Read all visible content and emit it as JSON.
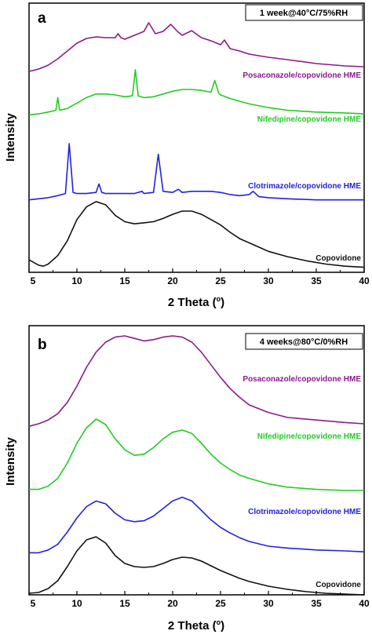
{
  "chart_data": [
    {
      "type": "line",
      "panel_label": "a",
      "condition": "1 week@40°C/75%RH",
      "xlabel": "2 Theta (°)",
      "ylabel": "Intensity",
      "xlim": [
        5,
        40
      ],
      "xticks": [
        "5",
        "10",
        "15",
        "20",
        "25",
        "30",
        "35",
        "40"
      ],
      "series": [
        {
          "name": "Posaconazole/copovidone HME",
          "color": "#8B1A8B",
          "x": [
            5,
            6,
            7,
            8,
            9,
            10,
            11,
            12,
            13,
            14,
            14.3,
            14.6,
            15,
            16,
            17,
            17.5,
            17.8,
            18.2,
            19,
            19.8,
            20.5,
            21,
            22,
            22.3,
            23,
            24,
            25,
            25.4,
            26,
            27,
            28,
            30,
            32,
            35,
            38,
            40
          ],
          "y": [
            0.04,
            0.07,
            0.12,
            0.2,
            0.3,
            0.4,
            0.46,
            0.48,
            0.47,
            0.47,
            0.52,
            0.47,
            0.45,
            0.5,
            0.55,
            0.66,
            0.6,
            0.52,
            0.55,
            0.64,
            0.55,
            0.5,
            0.56,
            0.53,
            0.47,
            0.43,
            0.38,
            0.44,
            0.33,
            0.3,
            0.26,
            0.22,
            0.19,
            0.14,
            0.11,
            0.1
          ]
        },
        {
          "name": "Nifedipine/copovidone HME",
          "color": "#22CC22",
          "x": [
            5,
            6,
            7,
            7.8,
            8,
            8.2,
            9,
            10,
            11,
            12,
            13,
            14,
            15,
            15.8,
            16.1,
            16.4,
            17,
            18,
            19,
            20,
            21,
            22,
            23,
            24,
            24.4,
            24.8,
            25,
            26,
            27,
            28,
            30,
            32,
            35,
            38,
            40
          ],
          "y": [
            0.05,
            0.06,
            0.08,
            0.1,
            0.24,
            0.1,
            0.12,
            0.18,
            0.24,
            0.28,
            0.28,
            0.27,
            0.25,
            0.26,
            0.55,
            0.26,
            0.24,
            0.25,
            0.28,
            0.31,
            0.33,
            0.33,
            0.32,
            0.3,
            0.43,
            0.29,
            0.27,
            0.23,
            0.2,
            0.17,
            0.13,
            0.1,
            0.08,
            0.07,
            0.06
          ]
        },
        {
          "name": "Clotrimazole/copovidone HME",
          "color": "#2222DD",
          "x": [
            5,
            6,
            7,
            8,
            8.8,
            9.2,
            9.6,
            10,
            11,
            12,
            12.3,
            12.6,
            13,
            14,
            15,
            16,
            16.8,
            17,
            18,
            18.5,
            19,
            20,
            20.6,
            21,
            22,
            23,
            24,
            25,
            26,
            27,
            28,
            28.4,
            29,
            30,
            32,
            35,
            38,
            40
          ],
          "y": [
            0.01,
            0.02,
            0.03,
            0.05,
            0.07,
            0.54,
            0.08,
            0.07,
            0.07,
            0.08,
            0.16,
            0.08,
            0.07,
            0.07,
            0.07,
            0.07,
            0.09,
            0.07,
            0.08,
            0.44,
            0.09,
            0.08,
            0.11,
            0.08,
            0.09,
            0.09,
            0.09,
            0.08,
            0.06,
            0.05,
            0.06,
            0.09,
            0.04,
            0.03,
            0.02,
            0.01,
            0.01,
            0.01
          ]
        },
        {
          "name": "Copovidone",
          "color": "#111111",
          "x": [
            5,
            6,
            6.5,
            7,
            8,
            9,
            10,
            11,
            12,
            13,
            14,
            15,
            16,
            17,
            18,
            19,
            20,
            21,
            22,
            23,
            24,
            25,
            26,
            27,
            28,
            29,
            30,
            32,
            34,
            36,
            38,
            40
          ],
          "y": [
            0.14,
            0.09,
            0.08,
            0.1,
            0.18,
            0.32,
            0.52,
            0.64,
            0.69,
            0.66,
            0.56,
            0.5,
            0.48,
            0.49,
            0.5,
            0.53,
            0.57,
            0.6,
            0.6,
            0.57,
            0.52,
            0.47,
            0.4,
            0.34,
            0.3,
            0.26,
            0.22,
            0.17,
            0.13,
            0.1,
            0.08,
            0.07
          ]
        }
      ]
    },
    {
      "type": "line",
      "panel_label": "b",
      "condition": "4 weeks@80°C/0%RH",
      "xlabel": "2 Theta (°)",
      "ylabel": "Intensity",
      "xlim": [
        5,
        40
      ],
      "xticks": [
        "5",
        "10",
        "15",
        "20",
        "25",
        "30",
        "35",
        "40"
      ],
      "series": [
        {
          "name": "Posaconazole/copovidone HME",
          "color": "#8B1A8B",
          "x": [
            5,
            6,
            7,
            8,
            9,
            10,
            11,
            12,
            13,
            14,
            15,
            16,
            17,
            18,
            19,
            20,
            21,
            22,
            23,
            24,
            25,
            26,
            27,
            28,
            30,
            32,
            35,
            38,
            40
          ],
          "y": [
            0.03,
            0.05,
            0.08,
            0.13,
            0.22,
            0.35,
            0.5,
            0.62,
            0.7,
            0.74,
            0.75,
            0.73,
            0.71,
            0.72,
            0.74,
            0.75,
            0.74,
            0.7,
            0.62,
            0.52,
            0.42,
            0.33,
            0.26,
            0.2,
            0.14,
            0.1,
            0.08,
            0.06,
            0.05
          ]
        },
        {
          "name": "Nifedipine/copovidone HME",
          "color": "#22CC22",
          "x": [
            5,
            6,
            7,
            8,
            9,
            10,
            11,
            12,
            13,
            14,
            15,
            16,
            17,
            18,
            19,
            20,
            21,
            22,
            23,
            24,
            25,
            26,
            27,
            28,
            30,
            32,
            35,
            38,
            40
          ],
          "y": [
            0.06,
            0.06,
            0.09,
            0.16,
            0.3,
            0.48,
            0.62,
            0.7,
            0.65,
            0.52,
            0.42,
            0.37,
            0.38,
            0.44,
            0.52,
            0.58,
            0.6,
            0.57,
            0.48,
            0.38,
            0.3,
            0.24,
            0.19,
            0.16,
            0.11,
            0.08,
            0.06,
            0.05,
            0.05
          ]
        },
        {
          "name": "Clotrimazole/copovidone HME",
          "color": "#2222DD",
          "x": [
            5,
            6,
            7,
            8,
            9,
            10,
            11,
            12,
            13,
            14,
            15,
            16,
            17,
            18,
            19,
            20,
            21,
            22,
            23,
            24,
            25,
            26,
            27,
            28,
            30,
            32,
            35,
            38,
            40
          ],
          "y": [
            0.03,
            0.03,
            0.06,
            0.12,
            0.25,
            0.4,
            0.52,
            0.58,
            0.55,
            0.45,
            0.38,
            0.36,
            0.37,
            0.42,
            0.5,
            0.58,
            0.62,
            0.58,
            0.48,
            0.38,
            0.3,
            0.24,
            0.19,
            0.15,
            0.1,
            0.08,
            0.06,
            0.05,
            0.04
          ]
        },
        {
          "name": "Copovidone",
          "color": "#111111",
          "x": [
            5,
            6,
            7,
            8,
            9,
            10,
            11,
            12,
            13,
            14,
            15,
            16,
            17,
            18,
            19,
            20,
            21,
            22,
            23,
            24,
            25,
            26,
            27,
            28,
            29,
            30,
            32,
            34,
            36,
            38,
            40
          ],
          "y": [
            0.04,
            0.05,
            0.1,
            0.2,
            0.38,
            0.58,
            0.72,
            0.76,
            0.68,
            0.52,
            0.42,
            0.38,
            0.37,
            0.38,
            0.42,
            0.47,
            0.5,
            0.49,
            0.45,
            0.39,
            0.33,
            0.28,
            0.23,
            0.19,
            0.16,
            0.13,
            0.09,
            0.06,
            0.04,
            0.03,
            0.02
          ]
        }
      ]
    }
  ]
}
